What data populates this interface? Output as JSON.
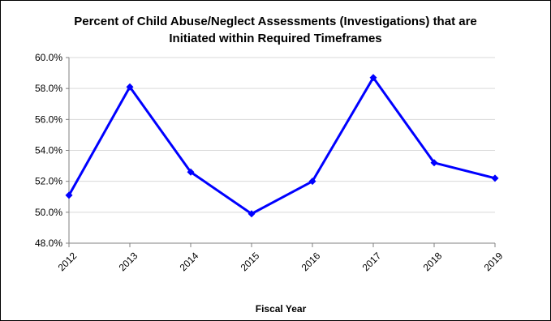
{
  "chart_data": {
    "type": "line",
    "title_lines": [
      "Percent of Child Abuse/Neglect Assessments (Investigations) that are",
      "Initiated within Required Timeframes"
    ],
    "xlabel": "Fiscal Year",
    "ylabel": "",
    "x": [
      "2012",
      "2013",
      "2014",
      "2015",
      "2016",
      "2017",
      "2018",
      "2019"
    ],
    "series": [
      {
        "values": [
          51.1,
          58.1,
          52.6,
          49.9,
          52.0,
          58.7,
          53.2,
          52.2
        ],
        "color": "#0000ff"
      }
    ],
    "ylim": [
      48.0,
      60.0
    ],
    "y_ticks": [
      48.0,
      50.0,
      52.0,
      54.0,
      56.0,
      58.0,
      60.0
    ],
    "y_tick_labels": [
      "48.0%",
      "50.0%",
      "52.0%",
      "54.0%",
      "56.0%",
      "58.0%",
      "60.0%"
    ],
    "grid": true,
    "legend": "none",
    "x_tick_rotation": "-45deg"
  }
}
